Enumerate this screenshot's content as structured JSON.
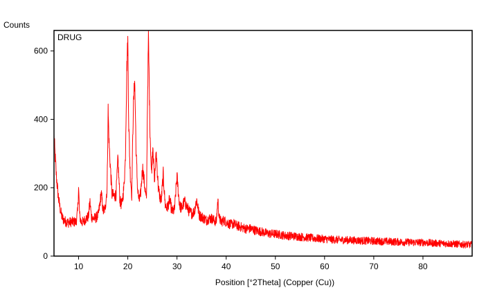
{
  "chart_data": {
    "type": "line",
    "title": "DRUG",
    "ylabel": "Counts",
    "xlabel": "Position [°2Theta] (Copper (Cu))",
    "xlim": [
      5,
      90
    ],
    "ylim": [
      0,
      660
    ],
    "x_ticks": [
      10,
      20,
      30,
      40,
      50,
      60,
      70,
      80
    ],
    "y_ticks": [
      0,
      200,
      400,
      600
    ],
    "grid": false,
    "line_color": "#ff0000",
    "series": [
      {
        "x": [
          5.0,
          5.2,
          5.5,
          5.8,
          6.0,
          6.3,
          6.6,
          7.0,
          7.5,
          8.0,
          8.5,
          9.0,
          9.5,
          9.8,
          10.0,
          10.2,
          10.5,
          11.0,
          11.5,
          12.0,
          12.3,
          12.6,
          13.0,
          13.5,
          14.0,
          14.3,
          14.6,
          15.0,
          15.4,
          15.8,
          16.0,
          16.2,
          16.5,
          16.8,
          17.2,
          17.6,
          18.0,
          18.4,
          18.8,
          19.2,
          19.5,
          19.8,
          20.0,
          20.2,
          20.5,
          20.8,
          21.1,
          21.4,
          21.7,
          22.0,
          22.3,
          22.6,
          23.0,
          23.4,
          23.8,
          24.0,
          24.2,
          24.5,
          24.8,
          25.1,
          25.4,
          25.8,
          26.2,
          26.5,
          26.8,
          27.2,
          27.6,
          28.0,
          28.5,
          29.0,
          29.5,
          30.0,
          30.3,
          30.6,
          31.0,
          31.5,
          32.0,
          32.5,
          33.0,
          33.5,
          34.0,
          34.5,
          35.0,
          35.5,
          36.0,
          36.5,
          37.0,
          37.5,
          38.0,
          38.3,
          38.6,
          39.0,
          39.5,
          40.0,
          40.5,
          41.0,
          41.5,
          42.0,
          43.0,
          44.0,
          45.0,
          46.0,
          47.0,
          48.0,
          49.0,
          50.0,
          52.0,
          54.0,
          56.0,
          58.0,
          60.0,
          62.0,
          64.0,
          66.0,
          68.0,
          70.0,
          72.0,
          74.0,
          76.0,
          78.0,
          80.0,
          82.0,
          84.0,
          86.0,
          88.0,
          90.0
        ],
        "y": [
          350,
          300,
          230,
          185,
          160,
          135,
          115,
          105,
          100,
          98,
          100,
          100,
          100,
          130,
          200,
          120,
          100,
          100,
          110,
          115,
          160,
          115,
          110,
          112,
          120,
          150,
          185,
          130,
          140,
          200,
          430,
          330,
          250,
          180,
          175,
          180,
          285,
          160,
          150,
          200,
          280,
          550,
          630,
          380,
          240,
          180,
          420,
          520,
          300,
          195,
          160,
          180,
          260,
          210,
          160,
          450,
          640,
          380,
          240,
          330,
          220,
          300,
          200,
          175,
          160,
          240,
          150,
          140,
          165,
          130,
          135,
          235,
          180,
          145,
          140,
          160,
          145,
          130,
          125,
          130,
          165,
          120,
          115,
          110,
          105,
          110,
          110,
          105,
          100,
          165,
          110,
          100,
          105,
          100,
          95,
          92,
          95,
          90,
          85,
          80,
          80,
          75,
          72,
          68,
          65,
          65,
          60,
          58,
          55,
          52,
          50,
          48,
          47,
          46,
          45,
          44,
          43,
          42,
          41,
          40,
          40,
          38,
          37,
          36,
          34,
          33
        ]
      }
    ]
  }
}
